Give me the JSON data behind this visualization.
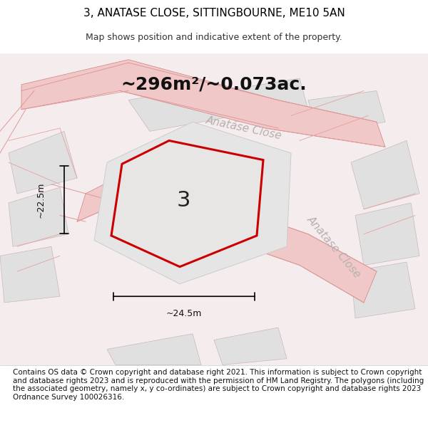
{
  "title": "3, ANATASE CLOSE, SITTINGBOURNE, ME10 5AN",
  "subtitle": "Map shows position and indicative extent of the property.",
  "area_text": "~296m²/~0.073ac.",
  "label_3": "3",
  "dim_width": "~24.5m",
  "dim_height": "~22.5m",
  "street_label1": "Anatase Close",
  "street_label2": "Anatase Close",
  "footer": "Contains OS data © Crown copyright and database right 2021. This information is subject to Crown copyright and database rights 2023 and is reproduced with the permission of HM Land Registry. The polygons (including the associated geometry, namely x, y co-ordinates) are subject to Crown copyright and database rights 2023 Ordnance Survey 100026316.",
  "bg_color": "#f5f0f0",
  "map_bg": "#ffffff",
  "plot_fill": "#e8e8e8",
  "plot_outline": "#cc0000",
  "road_color": "#f0c8c8",
  "road_outline": "#e89090",
  "dim_color": "#111111",
  "title_fontsize": 11,
  "subtitle_fontsize": 9,
  "area_fontsize": 18,
  "label_fontsize": 22,
  "footer_fontsize": 7.5,
  "street_fontsize": 11
}
